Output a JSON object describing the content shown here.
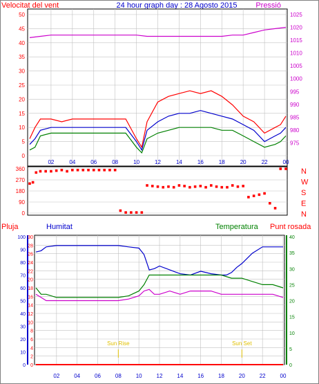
{
  "chart_data": [
    {
      "type": "line",
      "title": "24 hour graph day : 28 Agosto 2015",
      "left_axis_label": "Velocitat del vent",
      "right_axis_label": "Pressió",
      "y_left": {
        "range": [
          0,
          50
        ],
        "ticks": [
          "0",
          "5",
          "10",
          "15",
          "20",
          "25",
          "30",
          "35",
          "40",
          "45",
          "50"
        ]
      },
      "y_right": {
        "range": [
          970,
          1025
        ],
        "ticks": [
          "975",
          "980",
          "985",
          "990",
          "995",
          "1000",
          "1005",
          "1010",
          "1015",
          "1020",
          "1025"
        ]
      },
      "x_ticks": [
        "02",
        "04",
        "06",
        "08",
        "10",
        "12",
        "14",
        "16",
        "18",
        "20",
        "22",
        "00"
      ],
      "grid": true,
      "series": [
        {
          "color": "#ff0000",
          "axis": "left",
          "x": [
            0,
            0.5,
            1,
            2,
            3,
            4,
            5,
            6,
            7,
            8,
            9,
            10,
            10.5,
            11,
            12,
            13,
            14,
            15,
            16,
            17,
            18,
            19,
            20,
            21,
            22,
            23,
            23.5,
            24
          ],
          "values": [
            6,
            10,
            13,
            13,
            12,
            13,
            13,
            13,
            13,
            13,
            13,
            6,
            3,
            12,
            19,
            21,
            22,
            23,
            22,
            23,
            21,
            18,
            14,
            12,
            8,
            10,
            11,
            14
          ]
        },
        {
          "color": "#0000cc",
          "axis": "left",
          "x": [
            0,
            0.5,
            1,
            2,
            3,
            4,
            5,
            6,
            7,
            8,
            9,
            10,
            10.5,
            11,
            12,
            13,
            14,
            15,
            16,
            17,
            18,
            19,
            20,
            21,
            22,
            23,
            23.5,
            24
          ],
          "values": [
            4,
            6,
            9,
            10,
            10,
            10,
            10,
            10,
            10,
            10,
            10,
            5,
            2,
            9,
            12,
            14,
            15,
            15,
            16,
            15,
            14,
            13,
            11,
            9,
            5,
            7,
            8,
            10
          ]
        },
        {
          "color": "#008000",
          "axis": "left",
          "x": [
            0,
            0.5,
            1,
            2,
            3,
            4,
            5,
            6,
            7,
            8,
            9,
            10,
            10.5,
            11,
            12,
            13,
            14,
            15,
            16,
            17,
            18,
            19,
            20,
            21,
            22,
            23,
            23.5,
            24
          ],
          "values": [
            2,
            3,
            7,
            8,
            8,
            8,
            8,
            8,
            8,
            8,
            8,
            3,
            1,
            6,
            8,
            9,
            10,
            10,
            10,
            10,
            9,
            9,
            7,
            5,
            3,
            4,
            5,
            7
          ]
        },
        {
          "color": "#cc00cc",
          "axis": "right",
          "x": [
            0,
            1,
            2,
            3,
            4,
            5,
            6,
            7,
            8,
            9,
            10,
            11,
            12,
            13,
            14,
            15,
            16,
            17,
            18,
            19,
            20,
            21,
            22,
            23,
            24
          ],
          "values": [
            1016,
            1016.5,
            1017,
            1017,
            1017,
            1017,
            1017,
            1017,
            1017,
            1017,
            1017,
            1016.5,
            1016.5,
            1016.5,
            1016.5,
            1016.5,
            1016.5,
            1016.5,
            1016.5,
            1017,
            1017,
            1018,
            1019,
            1019.5,
            1020
          ]
        }
      ]
    },
    {
      "type": "scatter",
      "y_ticks": [
        "0",
        "90",
        "180",
        "270",
        "360"
      ],
      "y_range": [
        0,
        360
      ],
      "direction_labels": [
        "N",
        "W",
        "S",
        "E",
        "N"
      ],
      "x_range": [
        0,
        24
      ],
      "series": [
        {
          "color": "#ff0000",
          "x": [
            0,
            0.3,
            0.6,
            1,
            1.5,
            2,
            2.5,
            3,
            3.5,
            4,
            4.5,
            5,
            5.5,
            6,
            6.5,
            7,
            7.5,
            8,
            8.5,
            9,
            9.5,
            10,
            10.5,
            11,
            11.5,
            12,
            12.5,
            13,
            13.5,
            14,
            14.5,
            15,
            15.5,
            16,
            16.5,
            17,
            17.5,
            18,
            18.5,
            19,
            19.5,
            20,
            20.5,
            21,
            21.5,
            22,
            22.5,
            23,
            23.5,
            24
          ],
          "values": [
            240,
            250,
            330,
            340,
            340,
            340,
            345,
            350,
            340,
            350,
            350,
            350,
            350,
            350,
            350,
            350,
            350,
            350,
            20,
            5,
            5,
            5,
            5,
            225,
            220,
            215,
            210,
            215,
            210,
            225,
            220,
            210,
            215,
            220,
            210,
            225,
            215,
            210,
            210,
            225,
            215,
            220,
            130,
            140,
            150,
            160,
            80,
            40,
            360,
            360
          ]
        }
      ]
    },
    {
      "type": "line",
      "legend": [
        "Pluja",
        "Humitat",
        "Temperatura",
        "Punt rosada"
      ],
      "y_left_outer": {
        "range": [
          0,
          100
        ],
        "ticks": [
          "0",
          "10",
          "20",
          "30",
          "40",
          "50",
          "60",
          "70",
          "80",
          "90",
          "100"
        ]
      },
      "y_left_inner": {
        "range": [
          0,
          30
        ],
        "ticks": [
          "0",
          "2",
          "4",
          "6",
          "8",
          "10",
          "12",
          "14",
          "16",
          "18",
          "20",
          "22",
          "24",
          "26",
          "28",
          "30"
        ]
      },
      "y_right": {
        "range": [
          0,
          40
        ],
        "ticks": [
          "0",
          "5",
          "10",
          "15",
          "20",
          "25",
          "30",
          "35",
          "40"
        ]
      },
      "x_ticks": [
        "02",
        "04",
        "06",
        "08",
        "10",
        "12",
        "14",
        "16",
        "18",
        "20",
        "22",
        "00"
      ],
      "annotations": [
        {
          "x": 8,
          "text": "Sun Rise"
        },
        {
          "x": 20,
          "text": "Sun Set"
        }
      ],
      "series": [
        {
          "name": "Pluja",
          "color": "#ff0000",
          "axis": "left_inner",
          "x": [
            0,
            24
          ],
          "values": [
            0,
            0
          ]
        },
        {
          "name": "Humitat",
          "color": "#0000cc",
          "axis": "left_outer",
          "x": [
            0,
            0.5,
            1,
            2,
            3,
            4,
            5,
            6,
            7,
            8,
            9,
            10,
            10.5,
            11,
            11.5,
            12,
            13,
            14,
            15,
            16,
            17,
            18,
            18.5,
            19,
            19.5,
            20,
            21,
            22,
            23,
            24
          ],
          "values": [
            88,
            89,
            92,
            93,
            93,
            93,
            93,
            93,
            93,
            93,
            92,
            91,
            86,
            74,
            75,
            77,
            74,
            71,
            70,
            73,
            71,
            70,
            70,
            72,
            76,
            79,
            87,
            92,
            92,
            92
          ]
        },
        {
          "name": "Temperatura",
          "color": "#008000",
          "axis": "right",
          "x": [
            0,
            0.5,
            1,
            2,
            3,
            4,
            5,
            6,
            7,
            8,
            9,
            10,
            10.5,
            11,
            12,
            13,
            14,
            15,
            16,
            17,
            18,
            19,
            20,
            21,
            22,
            23,
            24
          ],
          "values": [
            24,
            22,
            22,
            21,
            21,
            21,
            21,
            21,
            21,
            21,
            21.5,
            23,
            25,
            28,
            28,
            28,
            28,
            28,
            28,
            28,
            28,
            27,
            27,
            26,
            25,
            25,
            24
          ]
        },
        {
          "name": "Punt rosada",
          "color": "#cc00cc",
          "axis": "right",
          "x": [
            0,
            0.5,
            1,
            2,
            3,
            4,
            5,
            6,
            7,
            8,
            9,
            10,
            10.5,
            11,
            11.5,
            12,
            13,
            14,
            15,
            16,
            17,
            18,
            19,
            20,
            21,
            22,
            23,
            24
          ],
          "values": [
            22,
            21,
            20,
            20,
            20,
            20,
            20,
            20,
            20,
            20,
            20.5,
            21.5,
            23,
            23.5,
            22,
            22,
            23,
            22,
            23,
            23,
            23,
            22,
            22,
            22,
            22,
            22,
            22,
            21
          ]
        }
      ]
    }
  ]
}
